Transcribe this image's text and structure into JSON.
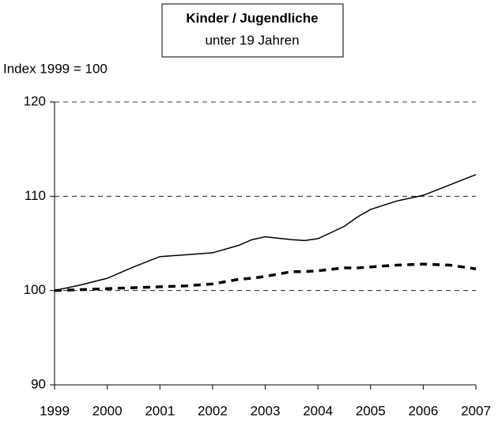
{
  "chart_data": {
    "type": "line",
    "title": "Kinder / Jugendliche",
    "subtitle": "unter 19 Jahren",
    "y_label": "Index 1999 = 100",
    "x": [
      1999,
      1999.5,
      2000,
      2000.5,
      2001,
      2001.5,
      2002,
      2002.5,
      2002.75,
      2003,
      2003.5,
      2003.75,
      2004,
      2004.5,
      2004.75,
      2005,
      2005.5,
      2006,
      2006.5,
      2007
    ],
    "series": [
      {
        "color": "#000000",
        "line_style": "solid",
        "values": [
          100,
          100.6,
          101.3,
          102.5,
          103.6,
          103.8,
          104.0,
          104.8,
          105.4,
          105.7,
          105.4,
          105.3,
          105.5,
          106.8,
          107.8,
          108.6,
          109.5,
          110.1,
          111.2,
          112.3
        ]
      },
      {
        "color": "#000000",
        "line_style": "dashed",
        "values": [
          100,
          100.1,
          100.2,
          100.3,
          100.4,
          100.5,
          100.7,
          101.2,
          101.3,
          101.5,
          102.0,
          102.0,
          102.1,
          102.4,
          102.4,
          102.5,
          102.7,
          102.8,
          102.7,
          102.3
        ]
      }
    ],
    "xlim": [
      1999,
      2007
    ],
    "xticks": [
      1999,
      2000,
      2001,
      2002,
      2003,
      2004,
      2005,
      2006,
      2007
    ],
    "ylim": [
      90,
      120
    ],
    "yticks": [
      90,
      100,
      110,
      120
    ],
    "grid": true
  }
}
